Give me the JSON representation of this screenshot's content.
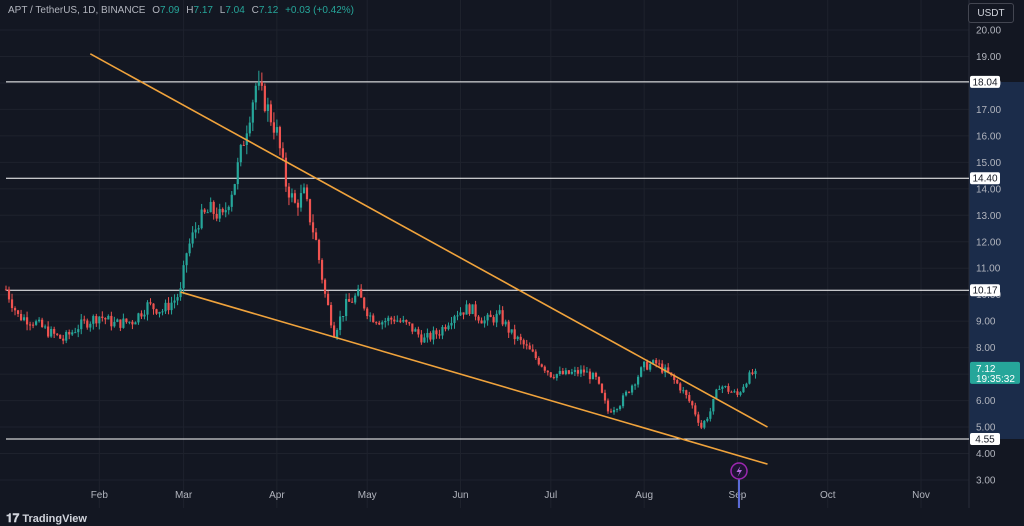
{
  "header": {
    "symbol": "APT / TetherUS, 1D, BINANCE",
    "o_label": "O",
    "o_value": "7.09",
    "h_label": "H",
    "h_value": "7.17",
    "l_label": "L",
    "l_value": "7.04",
    "c_label": "C",
    "c_value": "7.12",
    "change": "+0.03 (+0.42%)"
  },
  "currency_button": "USDT",
  "branding": "TradingView",
  "colors": {
    "up": "#26a69a",
    "down": "#ef5350",
    "trendline": "#f0a33c",
    "level": "#ffffff"
  },
  "chart_data": {
    "type": "candlestick",
    "y_ticks": [
      "3.00",
      "4.00",
      "5.00",
      "6.00",
      "7.00",
      "8.00",
      "9.00",
      "10.00",
      "11.00",
      "12.00",
      "13.00",
      "14.00",
      "15.00",
      "16.00",
      "17.00",
      "18.00",
      "19.00",
      "20.00"
    ],
    "x_ticks": [
      "Feb",
      "Mar",
      "Apr",
      "May",
      "Jun",
      "Jul",
      "Aug",
      "Sep",
      "Oct",
      "Nov"
    ],
    "ylim": [
      3,
      20
    ],
    "horizontal_levels": [
      {
        "value": 18.04,
        "label": "18.04"
      },
      {
        "value": 14.4,
        "label": "14.40"
      },
      {
        "value": 10.17,
        "label": "10.17"
      },
      {
        "value": 4.55,
        "label": "4.55"
      }
    ],
    "current_price": {
      "value": 7.12,
      "label": "7.12",
      "countdown": "19:35:32"
    },
    "trendlines": [
      {
        "name": "upper",
        "start": {
          "date": "2023-01-29",
          "price": 19.1
        },
        "end": {
          "date": "2023-09-11",
          "price": 5.0
        }
      },
      {
        "name": "lower",
        "start": {
          "date": "2023-02-28",
          "price": 10.1
        },
        "end": {
          "date": "2023-09-11",
          "price": 3.6
        }
      }
    ],
    "price_path": [
      [
        "2023-01-01",
        10.2
      ],
      [
        "2023-01-05",
        9.2
      ],
      [
        "2023-01-10",
        9.0
      ],
      [
        "2023-01-15",
        8.6
      ],
      [
        "2023-01-20",
        8.3
      ],
      [
        "2023-01-25",
        8.8
      ],
      [
        "2023-02-01",
        9.2
      ],
      [
        "2023-02-06",
        8.9
      ],
      [
        "2023-02-12",
        9.0
      ],
      [
        "2023-02-17",
        9.6
      ],
      [
        "2023-02-22",
        9.4
      ],
      [
        "2023-02-26",
        9.8
      ],
      [
        "2023-02-28",
        10.1
      ],
      [
        "2023-03-02",
        11.6
      ],
      [
        "2023-03-06",
        12.8
      ],
      [
        "2023-03-10",
        13.2
      ],
      [
        "2023-03-14",
        12.9
      ],
      [
        "2023-03-18",
        14.3
      ],
      [
        "2023-03-22",
        16.4
      ],
      [
        "2023-03-25",
        17.9
      ],
      [
        "2023-03-28",
        17.3
      ],
      [
        "2023-04-01",
        16.1
      ],
      [
        "2023-04-04",
        14.2
      ],
      [
        "2023-04-07",
        13.4
      ],
      [
        "2023-04-10",
        13.8
      ],
      [
        "2023-04-14",
        12.0
      ],
      [
        "2023-04-17",
        10.0
      ],
      [
        "2023-04-20",
        8.6
      ],
      [
        "2023-04-24",
        9.6
      ],
      [
        "2023-04-28",
        10.0
      ],
      [
        "2023-05-02",
        9.2
      ],
      [
        "2023-05-06",
        9.0
      ],
      [
        "2023-05-10",
        9.1
      ],
      [
        "2023-05-15",
        8.8
      ],
      [
        "2023-05-20",
        8.3
      ],
      [
        "2023-05-25",
        8.6
      ],
      [
        "2023-05-30",
        9.3
      ],
      [
        "2023-06-04",
        9.5
      ],
      [
        "2023-06-09",
        9.0
      ],
      [
        "2023-06-14",
        9.2
      ],
      [
        "2023-06-18",
        8.5
      ],
      [
        "2023-06-22",
        8.1
      ],
      [
        "2023-06-27",
        7.5
      ],
      [
        "2023-07-01",
        7.0
      ],
      [
        "2023-07-06",
        7.0
      ],
      [
        "2023-07-12",
        7.1
      ],
      [
        "2023-07-16",
        6.8
      ],
      [
        "2023-07-20",
        5.6
      ],
      [
        "2023-07-24",
        5.9
      ],
      [
        "2023-07-28",
        6.6
      ],
      [
        "2023-08-01",
        7.3
      ],
      [
        "2023-08-05",
        7.4
      ],
      [
        "2023-08-09",
        7.0
      ],
      [
        "2023-08-13",
        6.5
      ],
      [
        "2023-08-17",
        5.8
      ],
      [
        "2023-08-20",
        5.0
      ],
      [
        "2023-08-23",
        5.6
      ],
      [
        "2023-08-26",
        6.6
      ],
      [
        "2023-08-29",
        6.4
      ],
      [
        "2023-09-01",
        6.2
      ],
      [
        "2023-09-04",
        6.8
      ],
      [
        "2023-09-07",
        7.12
      ]
    ]
  }
}
